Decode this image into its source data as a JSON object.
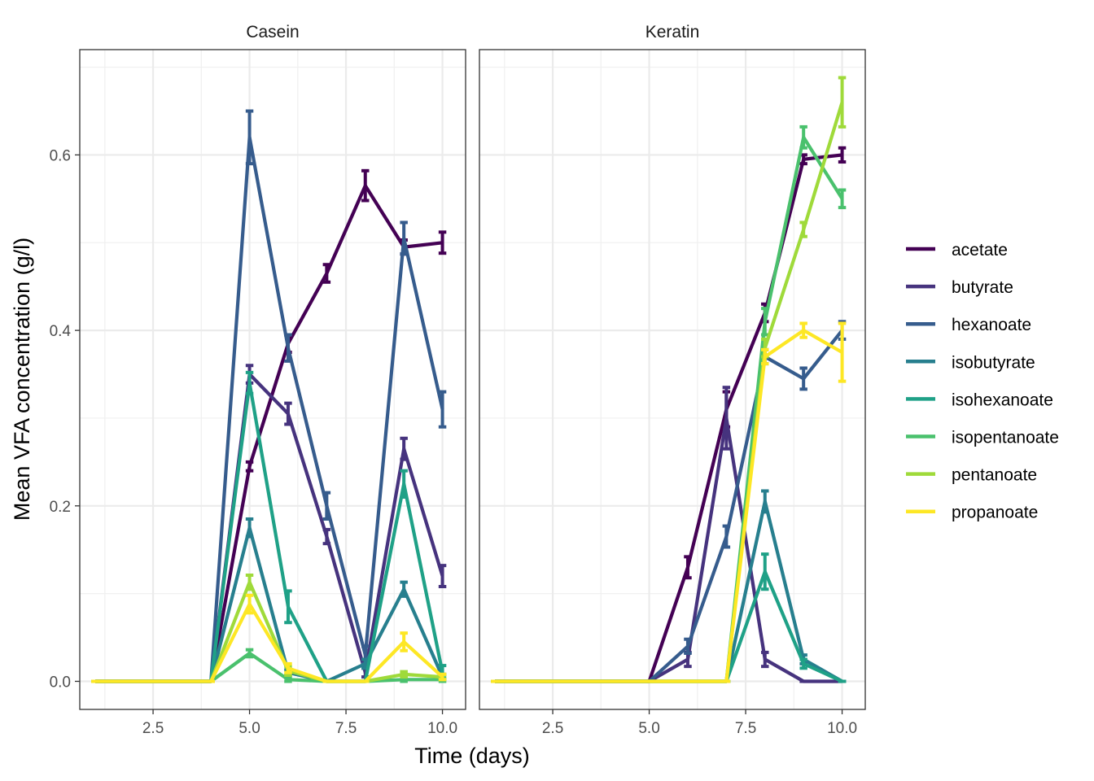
{
  "chart_data": {
    "type": "line",
    "xlabel": "Time (days)",
    "ylabel": "Mean VFA concentration (g/l)",
    "xlim": [
      0.6,
      10.6
    ],
    "ylim": [
      -0.032,
      0.72
    ],
    "x_ticks": [
      2.5,
      5.0,
      7.5,
      10.0
    ],
    "x_tick_labels": [
      "2.5",
      "5.0",
      "7.5",
      "10.0"
    ],
    "y_ticks": [
      0.0,
      0.2,
      0.4,
      0.6
    ],
    "y_tick_labels": [
      "0.0",
      "0.2",
      "0.4",
      "0.6"
    ],
    "grid": true,
    "legend_position": "right",
    "colors": {
      "acetate": "#440154",
      "butyrate": "#46337E",
      "hexanoate": "#365C8D",
      "isobutyrate": "#277F8E",
      "isohexanoate": "#1FA187",
      "isopentanoate": "#4AC16D",
      "pentanoate": "#9FDA3A",
      "propanoate": "#FDE725"
    },
    "legend": [
      "acetate",
      "butyrate",
      "hexanoate",
      "isobutyrate",
      "isohexanoate",
      "isopentanoate",
      "pentanoate",
      "propanoate"
    ],
    "x": [
      1,
      2,
      3,
      4,
      5,
      6,
      7,
      8,
      9,
      10
    ],
    "panels": [
      {
        "title": "Casein",
        "series": [
          {
            "name": "acetate",
            "values": [
              0,
              0,
              0,
              0,
              0.245,
              0.385,
              0.465,
              0.565,
              0.495,
              0.5
            ],
            "errors": [
              0,
              0,
              0,
              0,
              0.005,
              0.01,
              0.01,
              0.017,
              0.008,
              0.012
            ]
          },
          {
            "name": "butyrate",
            "values": [
              0,
              0,
              0,
              0,
              0.35,
              0.305,
              0.165,
              0.01,
              0.265,
              0.12
            ],
            "errors": [
              0,
              0,
              0,
              0,
              0.01,
              0.012,
              0.008,
              0.005,
              0.012,
              0.012
            ]
          },
          {
            "name": "hexanoate",
            "values": [
              0,
              0,
              0,
              0,
              0.62,
              0.38,
              0.2,
              0.03,
              0.505,
              0.31
            ],
            "errors": [
              0,
              0,
              0,
              0,
              0.03,
              0.015,
              0.015,
              0.01,
              0.018,
              0.02
            ]
          },
          {
            "name": "isobutyrate",
            "values": [
              0,
              0,
              0,
              0,
              0.175,
              0.01,
              0,
              0.02,
              0.105,
              0.005
            ],
            "errors": [
              0,
              0,
              0,
              0,
              0.01,
              0.003,
              0,
              0.005,
              0.008,
              0.003
            ]
          },
          {
            "name": "isohexanoate",
            "values": [
              0,
              0,
              0,
              0,
              0.34,
              0.085,
              0,
              0,
              0.225,
              0.01
            ],
            "errors": [
              0,
              0,
              0,
              0,
              0.012,
              0.018,
              0,
              0,
              0.015,
              0.008
            ]
          },
          {
            "name": "isopentanoate",
            "values": [
              0,
              0,
              0,
              0,
              0.032,
              0.002,
              0,
              0,
              0.002,
              0.002
            ],
            "errors": [
              0,
              0,
              0,
              0,
              0.004,
              0.002,
              0,
              0,
              0.002,
              0.002
            ]
          },
          {
            "name": "pentanoate",
            "values": [
              0,
              0,
              0,
              0,
              0.113,
              0.012,
              0,
              0,
              0.008,
              0.005
            ],
            "errors": [
              0,
              0,
              0,
              0,
              0.008,
              0.005,
              0,
              0,
              0.003,
              0.003
            ]
          },
          {
            "name": "propanoate",
            "values": [
              0,
              0,
              0,
              0,
              0.088,
              0.015,
              0,
              0,
              0.045,
              0.005
            ],
            "errors": [
              0,
              0,
              0,
              0,
              0.01,
              0.005,
              0,
              0,
              0.01,
              0.003
            ]
          }
        ]
      },
      {
        "title": "Keratin",
        "series": [
          {
            "name": "acetate",
            "values": [
              0,
              0,
              0,
              0,
              0,
              0.13,
              0.31,
              0.42,
              0.595,
              0.6
            ],
            "errors": [
              0,
              0,
              0,
              0,
              0,
              0.012,
              0.02,
              0.01,
              0.005,
              0.008
            ]
          },
          {
            "name": "butyrate",
            "values": [
              0,
              0,
              0,
              0,
              0,
              0.025,
              0.3,
              0.025,
              0,
              0
            ],
            "errors": [
              0,
              0,
              0,
              0,
              0,
              0.008,
              0.035,
              0.008,
              0,
              0
            ]
          },
          {
            "name": "hexanoate",
            "values": [
              0,
              0,
              0,
              0,
              0,
              0.04,
              0.165,
              0.37,
              0.345,
              0.4
            ],
            "errors": [
              0,
              0,
              0,
              0,
              0,
              0.008,
              0.012,
              0.008,
              0.012,
              0.01
            ]
          },
          {
            "name": "isobutyrate",
            "values": [
              0,
              0,
              0,
              0,
              0,
              0,
              0,
              0.205,
              0.025,
              0
            ],
            "errors": [
              0,
              0,
              0,
              0,
              0,
              0,
              0,
              0.012,
              0.005,
              0
            ]
          },
          {
            "name": "isohexanoate",
            "values": [
              0,
              0,
              0,
              0,
              0,
              0,
              0,
              0.125,
              0.02,
              0
            ],
            "errors": [
              0,
              0,
              0,
              0,
              0,
              0,
              0,
              0.02,
              0.005,
              0
            ]
          },
          {
            "name": "isopentanoate",
            "values": [
              0,
              0,
              0,
              0,
              0,
              0,
              0,
              0.41,
              0.62,
              0.55
            ],
            "errors": [
              0,
              0,
              0,
              0,
              0,
              0,
              0,
              0.015,
              0.012,
              0.01
            ]
          },
          {
            "name": "pentanoate",
            "values": [
              0,
              0,
              0,
              0,
              0,
              0,
              0,
              0.38,
              0.515,
              0.66
            ],
            "errors": [
              0,
              0,
              0,
              0,
              0,
              0,
              0,
              0.01,
              0.008,
              0.028
            ]
          },
          {
            "name": "propanoate",
            "values": [
              0,
              0,
              0,
              0,
              0,
              0,
              0,
              0.37,
              0.4,
              0.375
            ],
            "errors": [
              0,
              0,
              0,
              0,
              0,
              0,
              0,
              0.008,
              0.008,
              0.033
            ]
          }
        ]
      }
    ]
  }
}
